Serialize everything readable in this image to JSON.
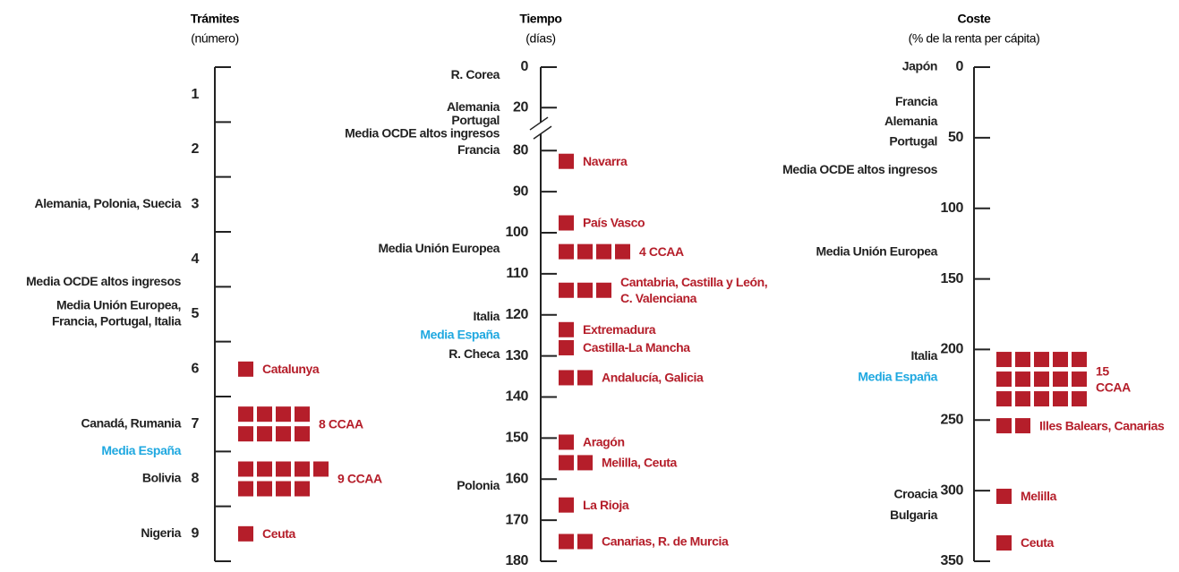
{
  "chart_data": [
    {
      "type": "strip",
      "title": "Trámites",
      "subtitle": "(número)",
      "tick_style": "between",
      "ylim": [
        0.5,
        9.5
      ],
      "yticks": [
        1,
        2,
        3,
        4,
        5,
        6,
        7,
        8,
        9
      ],
      "color": "#b51e2a",
      "label_color": "#222222",
      "labels": [
        {
          "lines": [
            "Alemania, Polonia, Suecia"
          ],
          "value": 3
        },
        {
          "lines": [
            "Media OCDE altos ingresos"
          ],
          "value": 4.42
        },
        {
          "lines": [
            "Media Unión Europea,",
            "Francia, Portugal, Italia"
          ],
          "value": 5
        },
        {
          "lines": [
            "Canadá, Rumania"
          ],
          "value": 7
        },
        {
          "lines": [
            "Media España"
          ],
          "value": 7.5,
          "color": "#1fa8e0"
        },
        {
          "lines": [
            "Bolivia"
          ],
          "value": 8
        },
        {
          "lines": [
            "Nigeria"
          ],
          "value": 9
        }
      ],
      "groups": [
        {
          "lines": [
            "Catalunya"
          ],
          "value": 6,
          "count": 1
        },
        {
          "lines": [
            "8 CCAA"
          ],
          "value": 7,
          "count": 8
        },
        {
          "lines": [
            "9 CCAA"
          ],
          "value": 8,
          "count": 9
        },
        {
          "lines": [
            "Ceuta"
          ],
          "value": 9,
          "count": 1
        }
      ]
    },
    {
      "type": "strip",
      "title": "Tiempo",
      "subtitle": "(días)",
      "tick_style": "at",
      "ylim": [
        0,
        180
      ],
      "axis_break": [
        20,
        80
      ],
      "yticks": [
        0,
        20,
        80,
        90,
        100,
        110,
        120,
        130,
        140,
        150,
        160,
        170,
        180
      ],
      "color": "#b51e2a",
      "label_color": "#222222",
      "labels": [
        {
          "lines": [
            "R. Corea"
          ],
          "value": 4
        },
        {
          "lines": [
            "Alemania"
          ],
          "value": 20
        },
        {
          "lines": [
            "Portugal"
          ],
          "value": 39
        },
        {
          "lines": [
            "Media OCDE altos ingresos"
          ],
          "value": 57
        },
        {
          "lines": [
            "Francia"
          ],
          "value": 80
        },
        {
          "lines": [
            "Media Unión Europea"
          ],
          "value": 104
        },
        {
          "lines": [
            "Italia"
          ],
          "value": 120.5
        },
        {
          "lines": [
            "Media España"
          ],
          "value": 125,
          "color": "#1fa8e0"
        },
        {
          "lines": [
            "R. Checa"
          ],
          "value": 129.7
        },
        {
          "lines": [
            "Polonia"
          ],
          "value": 161.7
        }
      ],
      "groups": [
        {
          "lines": [
            "Navarra"
          ],
          "value": 82.6,
          "count": 1
        },
        {
          "lines": [
            "País Vasco"
          ],
          "value": 97.6,
          "count": 1
        },
        {
          "lines": [
            "4 CCAA"
          ],
          "value": 104.6,
          "count": 4
        },
        {
          "lines": [
            "Cantabria, Castilla y León,",
            "C. Valenciana"
          ],
          "value": 114,
          "count": 3
        },
        {
          "lines": [
            "Extremadura"
          ],
          "value": 123.6,
          "count": 1
        },
        {
          "lines": [
            "Castilla-La Mancha"
          ],
          "value": 128,
          "count": 1
        },
        {
          "lines": [
            "Andalucía, Galicia"
          ],
          "value": 135.3,
          "count": 2
        },
        {
          "lines": [
            "Aragón"
          ],
          "value": 151,
          "count": 1
        },
        {
          "lines": [
            "Melilla, Ceuta"
          ],
          "value": 156,
          "count": 2
        },
        {
          "lines": [
            "La Rioja"
          ],
          "value": 166.3,
          "count": 1
        },
        {
          "lines": [
            "Canarias, R. de Murcia"
          ],
          "value": 175.2,
          "count": 2
        }
      ]
    },
    {
      "type": "strip",
      "title": "Coste",
      "subtitle": "(% de la renta per cápita)",
      "tick_style": "at",
      "ylim": [
        0,
        350
      ],
      "yticks": [
        0,
        50,
        100,
        150,
        200,
        250,
        300,
        350
      ],
      "color": "#b51e2a",
      "label_color": "#222222",
      "labels": [
        {
          "lines": [
            "Japón"
          ],
          "value": 0
        },
        {
          "lines": [
            "Francia"
          ],
          "value": 25
        },
        {
          "lines": [
            "Alemania"
          ],
          "value": 39
        },
        {
          "lines": [
            "Portugal"
          ],
          "value": 53
        },
        {
          "lines": [
            "Media OCDE altos ingresos"
          ],
          "value": 73
        },
        {
          "lines": [
            "Media Unión Europea"
          ],
          "value": 131
        },
        {
          "lines": [
            "Italia"
          ],
          "value": 205
        },
        {
          "lines": [
            "Media España"
          ],
          "value": 220,
          "color": "#1fa8e0"
        },
        {
          "lines": [
            "Croacia"
          ],
          "value": 303
        },
        {
          "lines": [
            "Bulgaria"
          ],
          "value": 318
        }
      ],
      "groups": [
        {
          "lines": [
            "15",
            "CCAA"
          ],
          "value": 221,
          "count": 15
        },
        {
          "lines": [
            "Illes Balears, Canarias"
          ],
          "value": 254,
          "count": 2
        },
        {
          "lines": [
            "Melilla"
          ],
          "value": 304,
          "count": 1
        },
        {
          "lines": [
            "Ceuta"
          ],
          "value": 337,
          "count": 1
        }
      ]
    }
  ]
}
